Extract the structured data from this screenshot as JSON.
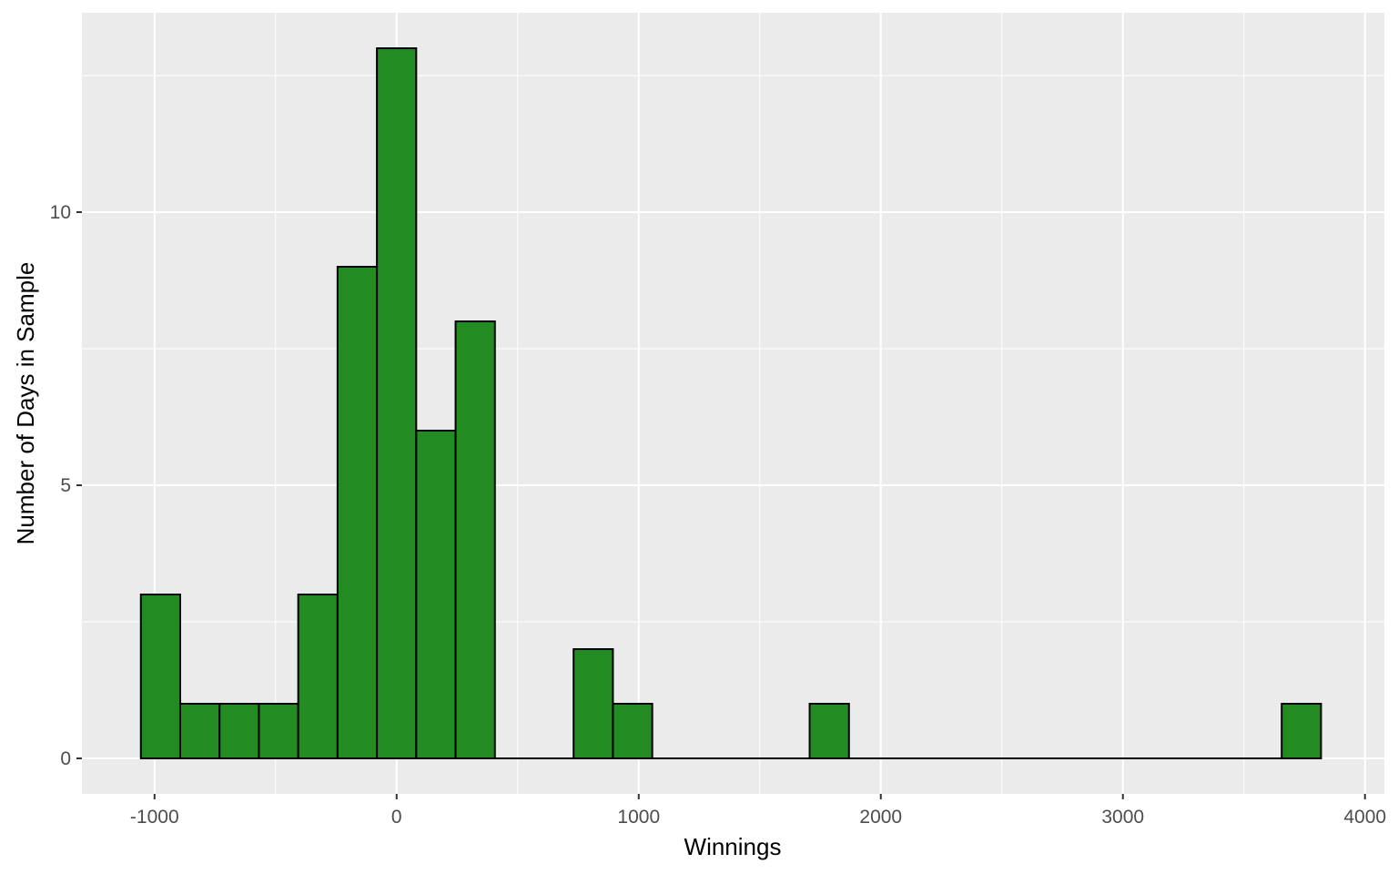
{
  "chart_data": {
    "type": "bar",
    "subtype": "histogram",
    "title": "",
    "xlabel": "Winnings",
    "ylabel": "Number of Days in Sample",
    "xlim": [
      -1300,
      4080
    ],
    "ylim": [
      -0.65,
      13.65
    ],
    "x_ticks": [
      -1000,
      0,
      1000,
      2000,
      3000,
      4000
    ],
    "x_tick_labels": [
      "-1000",
      "0",
      "1000",
      "2000",
      "3000",
      "4000"
    ],
    "x_minor_gridlines": [
      -500,
      500,
      1500,
      2500,
      3500
    ],
    "y_ticks": [
      0,
      5,
      10
    ],
    "y_tick_labels": [
      "0",
      "5",
      "10"
    ],
    "y_minor_gridlines": [
      2.5,
      7.5,
      12.5
    ],
    "bin_width": 162.5,
    "bins": [
      {
        "start": -1056.5,
        "end": -894,
        "count": 3
      },
      {
        "start": -894,
        "end": -731.5,
        "count": 1
      },
      {
        "start": -731.5,
        "end": -569,
        "count": 1
      },
      {
        "start": -569,
        "end": -406.5,
        "count": 1
      },
      {
        "start": -406.5,
        "end": -244,
        "count": 3
      },
      {
        "start": -244,
        "end": -81.5,
        "count": 9
      },
      {
        "start": -81.5,
        "end": 81,
        "count": 13
      },
      {
        "start": 81,
        "end": 243.5,
        "count": 6
      },
      {
        "start": 243.5,
        "end": 406,
        "count": 8
      },
      {
        "start": 406,
        "end": 568.5,
        "count": 0
      },
      {
        "start": 568.5,
        "end": 731,
        "count": 0
      },
      {
        "start": 731,
        "end": 893.5,
        "count": 2
      },
      {
        "start": 893.5,
        "end": 1056,
        "count": 1
      },
      {
        "start": 1056,
        "end": 1218.5,
        "count": 0
      },
      {
        "start": 1218.5,
        "end": 1381,
        "count": 0
      },
      {
        "start": 1381,
        "end": 1543.5,
        "count": 0
      },
      {
        "start": 1543.5,
        "end": 1706,
        "count": 0
      },
      {
        "start": 1706,
        "end": 1868.5,
        "count": 1
      },
      {
        "start": 1868.5,
        "end": 2031,
        "count": 0
      },
      {
        "start": 2031,
        "end": 2193.5,
        "count": 0
      },
      {
        "start": 2193.5,
        "end": 2356,
        "count": 0
      },
      {
        "start": 2356,
        "end": 2518.5,
        "count": 0
      },
      {
        "start": 2518.5,
        "end": 2681,
        "count": 0
      },
      {
        "start": 2681,
        "end": 2843.5,
        "count": 0
      },
      {
        "start": 2843.5,
        "end": 3006,
        "count": 0
      },
      {
        "start": 3006,
        "end": 3168.5,
        "count": 0
      },
      {
        "start": 3168.5,
        "end": 3331,
        "count": 0
      },
      {
        "start": 3331,
        "end": 3493.5,
        "count": 0
      },
      {
        "start": 3493.5,
        "end": 3656,
        "count": 0
      },
      {
        "start": 3656,
        "end": 3818.5,
        "count": 1
      }
    ],
    "grid": true,
    "legend": "none",
    "colors": {
      "bar_fill": "#228b22",
      "bar_outline": "#000000",
      "panel_background": "#ebebeb",
      "gridline": "#ffffff",
      "tick_label": "#4d4d4d",
      "axis_title": "#000000"
    }
  }
}
